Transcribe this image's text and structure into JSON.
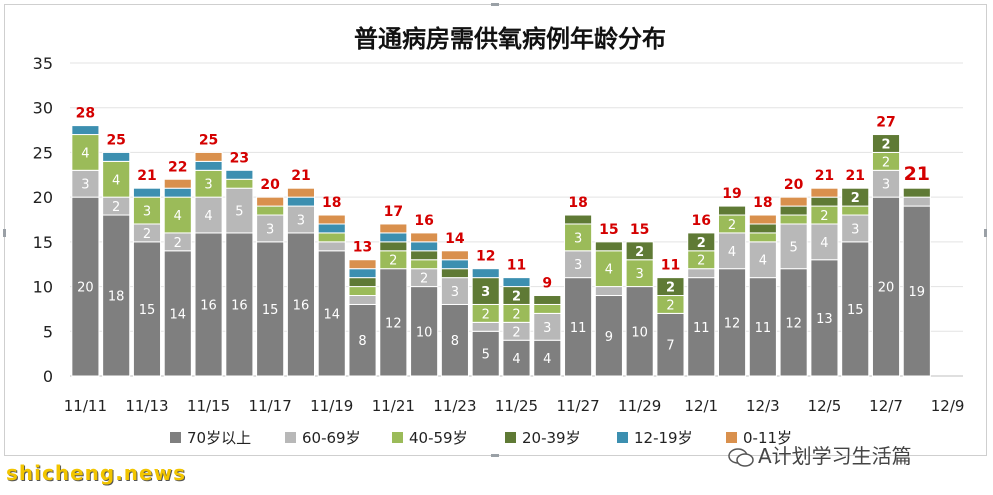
{
  "chart_data": {
    "type": "stacked-bar",
    "title": "普通病房需供氧病例年龄分布",
    "ylim": [
      0,
      35
    ],
    "yticks": [
      0,
      5,
      10,
      15,
      20,
      25,
      30,
      35
    ],
    "grid": true,
    "legend_position": "bottom",
    "categories": [
      "11/11",
      "11/12",
      "11/13",
      "11/14",
      "11/15",
      "11/16",
      "11/17",
      "11/18",
      "11/19",
      "11/20",
      "11/21",
      "11/22",
      "11/23",
      "11/24",
      "11/25",
      "11/26",
      "11/27",
      "11/28",
      "11/29",
      "11/30",
      "12/1",
      "12/2",
      "12/3",
      "12/4",
      "12/5",
      "12/6",
      "12/7",
      "12/8",
      "12/9"
    ],
    "xtick_labels": [
      "11/11",
      "11/13",
      "11/15",
      "11/17",
      "11/19",
      "11/21",
      "11/23",
      "11/25",
      "11/27",
      "11/29",
      "12/1",
      "12/3",
      "12/5",
      "12/7",
      "12/9"
    ],
    "series": [
      {
        "name": "70岁以上",
        "color": "#7f7f7f",
        "values": [
          20,
          18,
          15,
          14,
          16,
          16,
          15,
          16,
          14,
          8,
          12,
          10,
          8,
          5,
          4,
          4,
          11,
          9,
          10,
          7,
          11,
          12,
          11,
          12,
          13,
          15,
          20,
          19,
          0
        ]
      },
      {
        "name": "60-69岁",
        "color": "#b8b8b8",
        "values": [
          3,
          2,
          2,
          2,
          4,
          5,
          3,
          3,
          1,
          1,
          0,
          2,
          3,
          1,
          2,
          3,
          3,
          1,
          0,
          0,
          1,
          4,
          4,
          5,
          4,
          3,
          3,
          1,
          0
        ]
      },
      {
        "name": "40-59岁",
        "color": "#9bbb59",
        "values": [
          4,
          4,
          3,
          4,
          3,
          1,
          1,
          0,
          1,
          1,
          2,
          1,
          0,
          2,
          2,
          1,
          3,
          4,
          3,
          2,
          2,
          2,
          1,
          1,
          2,
          1,
          2,
          0,
          0
        ]
      },
      {
        "name": "20-39岁",
        "color": "#5f7a35",
        "values": [
          0,
          0,
          0,
          0,
          0,
          0,
          0,
          0,
          0,
          1,
          1,
          1,
          1,
          3,
          2,
          1,
          1,
          1,
          2,
          2,
          2,
          1,
          1,
          1,
          1,
          2,
          2,
          1,
          0
        ]
      },
      {
        "name": "12-19岁",
        "color": "#3c8fb0",
        "values": [
          1,
          1,
          1,
          1,
          1,
          1,
          0,
          1,
          1,
          1,
          1,
          1,
          1,
          1,
          1,
          0,
          0,
          0,
          0,
          0,
          0,
          0,
          0,
          0,
          0,
          0,
          0,
          0,
          0
        ]
      },
      {
        "name": "0-11岁",
        "color": "#d9904d",
        "values": [
          0,
          0,
          0,
          1,
          1,
          0,
          1,
          1,
          1,
          1,
          1,
          1,
          1,
          0,
          0,
          0,
          0,
          0,
          0,
          0,
          0,
          0,
          1,
          1,
          1,
          0,
          0,
          0,
          0
        ]
      }
    ],
    "totals": [
      28,
      25,
      21,
      22,
      25,
      23,
      20,
      21,
      18,
      13,
      17,
      16,
      14,
      12,
      11,
      9,
      18,
      15,
      15,
      11,
      16,
      19,
      18,
      20,
      21,
      21,
      27,
      21,
      null
    ],
    "total_label_color": "#d40000"
  },
  "footer": {
    "left_text": "shicheng.news",
    "right_text": "A计划学习生活篇"
  }
}
